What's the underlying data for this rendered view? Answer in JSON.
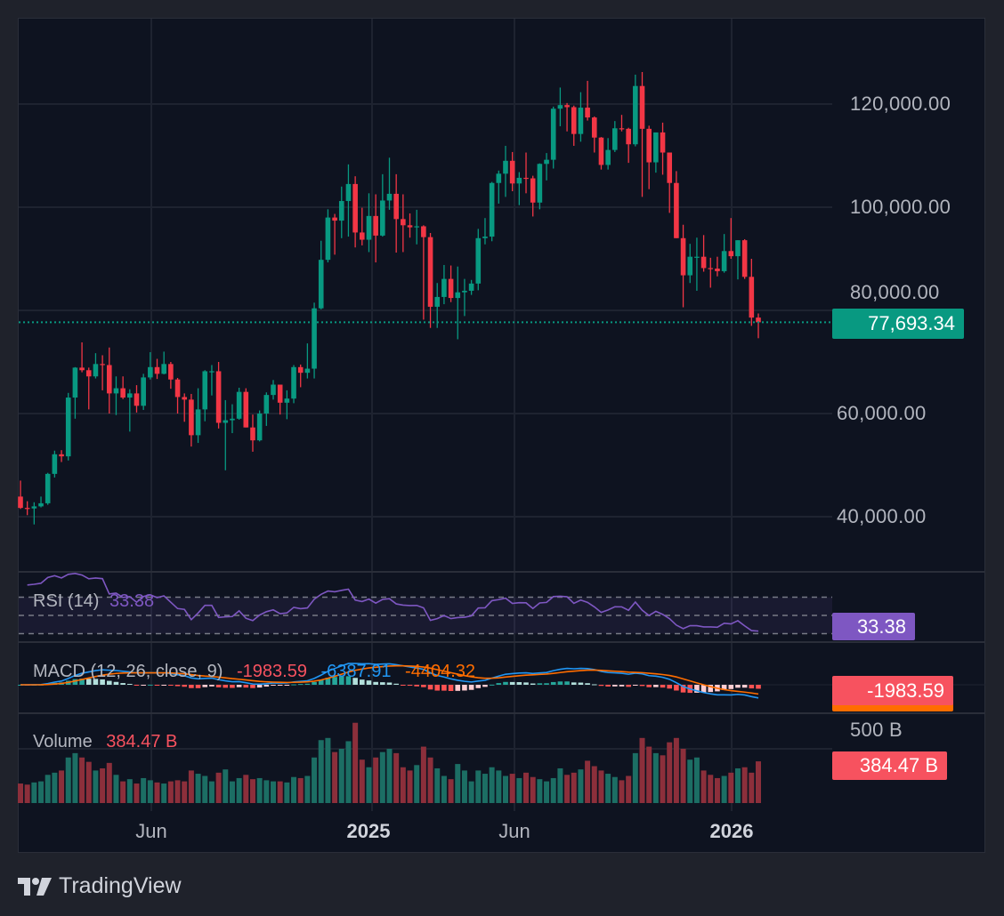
{
  "branding": {
    "logo_text": "TradingView"
  },
  "chart_data": {
    "type": "candlestick",
    "interval": "weekly",
    "price_axis": {
      "ticks": [
        "120,000.00",
        "100,000.00",
        "80,000.00",
        "60,000.00",
        "40,000.00"
      ],
      "tick_values": [
        120000,
        100000,
        80000,
        60000,
        40000
      ]
    },
    "time_axis": {
      "ticks": [
        {
          "label": "Jun",
          "bold": false
        },
        {
          "label": "2025",
          "bold": true
        },
        {
          "label": "Jun",
          "bold": false
        },
        {
          "label": "2026",
          "bold": true
        }
      ]
    },
    "last_price": "77,693.34",
    "unit": "thousands USD",
    "ohlc": [
      [
        43.9,
        47.0,
        41.5,
        41.7
      ],
      [
        41.7,
        43.0,
        40.3,
        41.6
      ],
      [
        41.6,
        42.8,
        38.5,
        42.0
      ],
      [
        42.0,
        43.9,
        41.8,
        42.6
      ],
      [
        42.6,
        48.5,
        42.3,
        48.3
      ],
      [
        48.3,
        52.8,
        47.6,
        52.1
      ],
      [
        52.1,
        52.9,
        50.6,
        51.7
      ],
      [
        51.7,
        64.0,
        50.9,
        63.1
      ],
      [
        63.1,
        69.0,
        59.0,
        68.9
      ],
      [
        68.9,
        73.8,
        68.0,
        68.4
      ],
      [
        68.4,
        68.9,
        60.8,
        67.2
      ],
      [
        67.2,
        71.7,
        66.8,
        69.6
      ],
      [
        69.6,
        71.3,
        64.5,
        69.4
      ],
      [
        69.4,
        72.8,
        60.0,
        63.9
      ],
      [
        63.9,
        67.2,
        59.7,
        64.9
      ],
      [
        64.9,
        67.2,
        62.8,
        63.1
      ],
      [
        63.1,
        64.7,
        56.5,
        63.9
      ],
      [
        63.9,
        65.5,
        60.2,
        61.5
      ],
      [
        61.5,
        67.7,
        60.7,
        67.0
      ],
      [
        67.0,
        71.9,
        66.6,
        69.0
      ],
      [
        69.0,
        70.6,
        66.7,
        67.7
      ],
      [
        67.7,
        72.0,
        67.6,
        69.6
      ],
      [
        69.6,
        70.0,
        64.8,
        66.6
      ],
      [
        66.6,
        66.9,
        60.0,
        63.2
      ],
      [
        63.2,
        63.9,
        58.4,
        62.7
      ],
      [
        62.7,
        63.8,
        53.6,
        55.8
      ],
      [
        55.8,
        64.9,
        54.3,
        60.8
      ],
      [
        60.8,
        68.4,
        58.5,
        68.2
      ],
      [
        68.2,
        69.4,
        63.5,
        68.2
      ],
      [
        68.2,
        70.0,
        57.1,
        58.2
      ],
      [
        58.2,
        62.6,
        49.0,
        58.7
      ],
      [
        58.7,
        61.8,
        56.2,
        59.0
      ],
      [
        59.0,
        65.0,
        58.8,
        64.2
      ],
      [
        64.2,
        64.9,
        57.3,
        57.3
      ],
      [
        57.3,
        59.8,
        52.6,
        54.8
      ],
      [
        54.8,
        60.6,
        54.6,
        60.0
      ],
      [
        60.0,
        64.1,
        57.6,
        63.6
      ],
      [
        63.6,
        66.5,
        62.7,
        65.6
      ],
      [
        65.6,
        65.6,
        59.8,
        62.1
      ],
      [
        62.1,
        64.5,
        58.9,
        62.9
      ],
      [
        62.9,
        69.4,
        62.0,
        69.0
      ],
      [
        69.0,
        69.5,
        65.1,
        67.9
      ],
      [
        67.9,
        73.6,
        66.8,
        68.7
      ],
      [
        68.7,
        81.5,
        66.8,
        80.4
      ],
      [
        80.4,
        93.5,
        80.2,
        89.8
      ],
      [
        89.8,
        99.6,
        89.3,
        98.0
      ],
      [
        98.0,
        98.7,
        90.8,
        97.4
      ],
      [
        97.4,
        104.0,
        94.0,
        101.2
      ],
      [
        101.2,
        108.3,
        94.3,
        104.5
      ],
      [
        104.5,
        106.0,
        92.2,
        95.1
      ],
      [
        95.1,
        99.9,
        92.6,
        93.7
      ],
      [
        93.7,
        102.7,
        91.3,
        98.3
      ],
      [
        98.3,
        102.5,
        89.3,
        94.5
      ],
      [
        94.5,
        106.4,
        94.3,
        101.3
      ],
      [
        101.3,
        109.6,
        99.5,
        102.6
      ],
      [
        102.6,
        106.4,
        91.2,
        97.7
      ],
      [
        97.7,
        102.5,
        91.3,
        96.5
      ],
      [
        96.5,
        98.8,
        94.1,
        96.1
      ],
      [
        96.1,
        99.5,
        92.8,
        96.3
      ],
      [
        96.3,
        96.5,
        78.2,
        94.2
      ],
      [
        94.2,
        95.0,
        76.6,
        80.7
      ],
      [
        80.7,
        85.3,
        76.6,
        82.6
      ],
      [
        82.6,
        88.8,
        81.2,
        86.1
      ],
      [
        86.1,
        88.7,
        81.6,
        82.4
      ],
      [
        82.4,
        88.5,
        74.4,
        83.5
      ],
      [
        83.5,
        86.1,
        78.9,
        83.8
      ],
      [
        83.8,
        85.9,
        83.0,
        85.2
      ],
      [
        85.2,
        95.8,
        83.9,
        94.0
      ],
      [
        94.0,
        97.9,
        92.8,
        94.3
      ],
      [
        94.3,
        104.9,
        93.4,
        104.7
      ],
      [
        104.7,
        107.1,
        100.7,
        106.5
      ],
      [
        106.5,
        111.9,
        102.0,
        109.0
      ],
      [
        109.0,
        110.7,
        103.1,
        104.6
      ],
      [
        104.6,
        106.8,
        100.4,
        105.7
      ],
      [
        105.7,
        110.6,
        102.7,
        105.6
      ],
      [
        105.6,
        106.1,
        98.2,
        100.9
      ],
      [
        100.9,
        108.5,
        99.6,
        108.4
      ],
      [
        108.4,
        110.5,
        105.2,
        109.2
      ],
      [
        109.2,
        119.5,
        107.5,
        119.1
      ],
      [
        119.1,
        123.2,
        115.7,
        119.8
      ],
      [
        119.8,
        120.2,
        114.7,
        119.4
      ],
      [
        119.4,
        119.7,
        111.9,
        114.2
      ],
      [
        114.2,
        122.3,
        112.7,
        119.3
      ],
      [
        119.3,
        124.5,
        116.8,
        117.4
      ],
      [
        117.4,
        117.6,
        110.6,
        113.5
      ],
      [
        113.5,
        113.6,
        107.3,
        108.2
      ],
      [
        108.2,
        113.4,
        107.3,
        111.1
      ],
      [
        111.1,
        116.7,
        110.7,
        115.3
      ],
      [
        115.3,
        117.9,
        114.7,
        115.2
      ],
      [
        115.2,
        115.4,
        108.6,
        112.2
      ],
      [
        112.2,
        125.7,
        111.8,
        123.5
      ],
      [
        123.5,
        126.2,
        102.0,
        115.2
      ],
      [
        115.2,
        115.8,
        103.5,
        108.7
      ],
      [
        108.7,
        114.0,
        106.7,
        114.5
      ],
      [
        114.5,
        116.4,
        106.3,
        110.6
      ],
      [
        110.6,
        110.6,
        98.9,
        104.7
      ],
      [
        104.7,
        107.0,
        94.0,
        94.0
      ],
      [
        94.0,
        96.6,
        80.6,
        86.8
      ],
      [
        86.8,
        92.9,
        85.3,
        90.4
      ],
      [
        90.4,
        94.1,
        83.8,
        90.4
      ],
      [
        90.4,
        94.6,
        87.5,
        88.2
      ],
      [
        88.2,
        90.2,
        84.4,
        88.1
      ],
      [
        88.1,
        90.4,
        86.6,
        87.6
      ],
      [
        87.6,
        94.8,
        87.3,
        91.5
      ],
      [
        91.5,
        97.9,
        90.0,
        90.5
      ],
      [
        90.5,
        93.6,
        86.0,
        93.6
      ],
      [
        93.6,
        93.8,
        86.1,
        86.5
      ],
      [
        86.5,
        90.0,
        77.0,
        78.6
      ],
      [
        78.6,
        79.4,
        74.6,
        77.69334
      ]
    ],
    "volume_billions": [
      180,
      170,
      190,
      200,
      260,
      280,
      300,
      420,
      460,
      420,
      380,
      300,
      320,
      370,
      260,
      200,
      220,
      180,
      230,
      210,
      190,
      180,
      200,
      210,
      200,
      300,
      270,
      250,
      200,
      280,
      310,
      200,
      230,
      260,
      220,
      230,
      210,
      200,
      200,
      190,
      240,
      230,
      250,
      420,
      580,
      600,
      470,
      500,
      570,
      740,
      400,
      330,
      420,
      470,
      500,
      460,
      330,
      300,
      350,
      520,
      420,
      320,
      250,
      220,
      360,
      300,
      200,
      300,
      270,
      330,
      300,
      250,
      270,
      230,
      280,
      240,
      220,
      200,
      230,
      320,
      260,
      280,
      310,
      390,
      340,
      300,
      270,
      240,
      210,
      250,
      460,
      600,
      520,
      460,
      440,
      560,
      600,
      500,
      400,
      420,
      300,
      260,
      230,
      250,
      280,
      320,
      330,
      280,
      384.47
    ],
    "indicators": {
      "rsi": {
        "label": "RSI (14)",
        "value": "33.38",
        "bands": [
          70,
          50,
          30
        ],
        "color": "#7e57c2"
      },
      "macd": {
        "label": "MACD (12, 26, close, 9)",
        "histogram": "-1983.59",
        "macd": "-6387.91",
        "signal": "-4404.32",
        "colors": {
          "histogram": "#f7525f",
          "macd": "#2196f3",
          "signal": "#ff6d00"
        }
      },
      "volume": {
        "label": "Volume",
        "value": "384.47 B",
        "axis_tick": "500 B"
      }
    },
    "colors": {
      "up": "#089981",
      "down": "#f23645",
      "grid": "#1e2330",
      "background": "#0e1320"
    }
  }
}
